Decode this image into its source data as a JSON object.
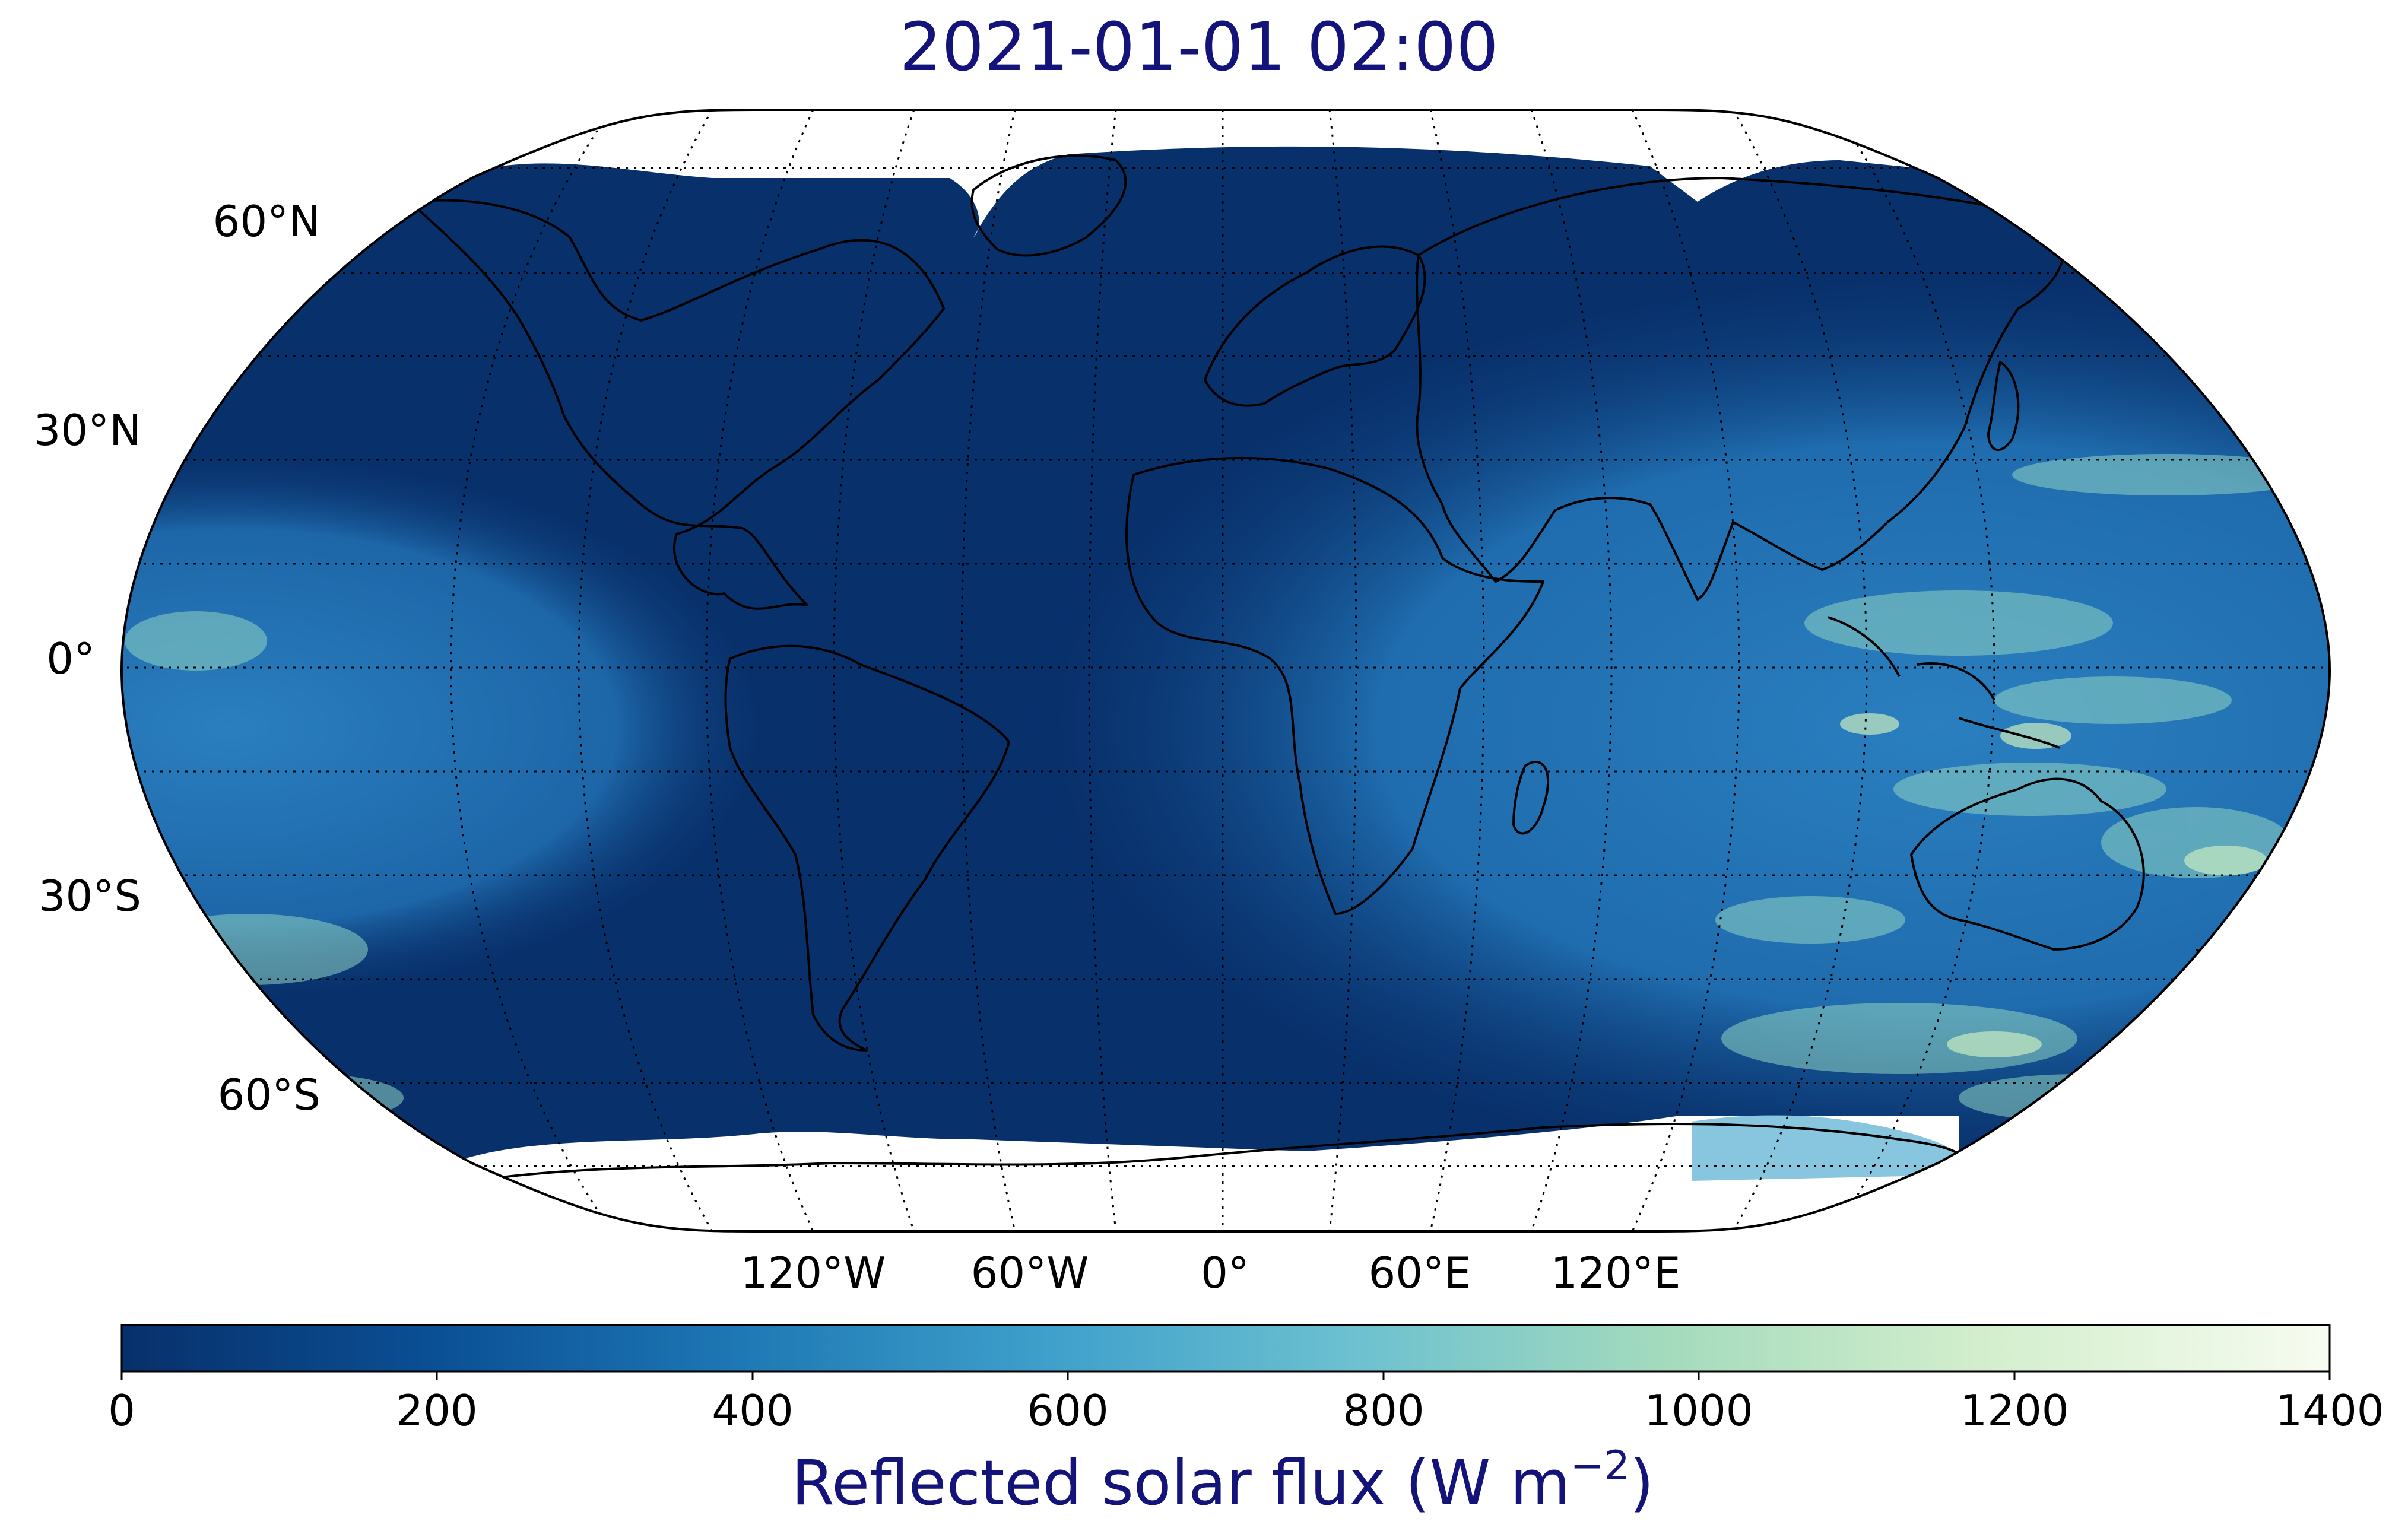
{
  "title": "2021-01-01 02:00",
  "map": {
    "projection": "Robinson",
    "lat_labels": [
      "60°N",
      "30°N",
      "0°",
      "30°S",
      "60°S"
    ],
    "lon_labels": [
      "120°W",
      "60°W",
      "0°",
      "60°E",
      "120°E"
    ],
    "gridlines": "dotted",
    "coastlines": true,
    "night_color": "#08306b",
    "day_color_low": "#1d6fb0",
    "cloud_color": "#8fd3c3"
  },
  "colorbar": {
    "cmap": "GnBu_r",
    "min": 0,
    "max": 1400,
    "ticks": [
      "0",
      "200",
      "400",
      "600",
      "800",
      "1000",
      "1200",
      "1400"
    ],
    "label": "Reflected solar flux (W m",
    "label_exp": "−2",
    "label_close": ")"
  }
}
